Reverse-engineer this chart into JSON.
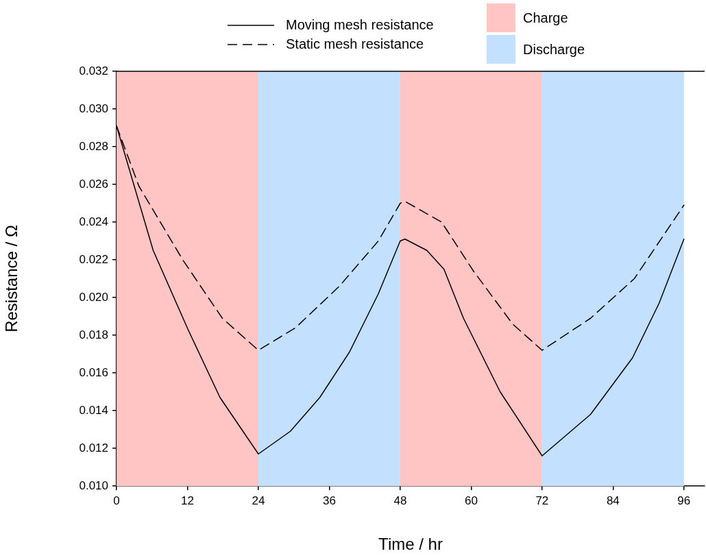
{
  "chart_data": {
    "type": "line",
    "xlabel": "Time / hr",
    "ylabel": "Resistance / Ω",
    "xlim": [
      0,
      99.5
    ],
    "xticks": [
      0,
      12,
      24,
      36,
      48,
      60,
      72,
      84,
      96
    ],
    "ylim": [
      0.01,
      0.032
    ],
    "yticks": [
      {
        "value": 0.01,
        "label": "0.010"
      },
      {
        "value": 0.012,
        "label": "0.012"
      },
      {
        "value": 0.014,
        "label": "0.014"
      },
      {
        "value": 0.016,
        "label": "0.016"
      },
      {
        "value": 0.018,
        "label": "0.018"
      },
      {
        "value": 0.02,
        "label": "0.020"
      },
      {
        "value": 0.022,
        "label": "0.022"
      },
      {
        "value": 0.024,
        "label": "0.024"
      },
      {
        "value": 0.026,
        "label": "0.026"
      },
      {
        "value": 0.028,
        "label": "0.028"
      },
      {
        "value": 0.03,
        "label": "0.030"
      },
      {
        "value": 0.032,
        "label": "0.032"
      }
    ],
    "grid": false,
    "legend": "top",
    "marker": "none",
    "series": [
      {
        "name": "Moving mesh resistance",
        "color": "#000000",
        "line_style": "solid",
        "x": [
          0,
          6.2,
          12.1,
          17.5,
          24,
          29.4,
          34.4,
          39.4,
          44.3,
          48,
          48.8,
          52.5,
          55.4,
          58.7,
          64.9,
          72,
          80.2,
          87.3,
          91.8,
          96
        ],
        "values": [
          0.0291,
          0.0225,
          0.0183,
          0.0147,
          0.0117,
          0.0129,
          0.0147,
          0.0171,
          0.0202,
          0.023,
          0.0231,
          0.0225,
          0.0215,
          0.0189,
          0.015,
          0.0116,
          0.0138,
          0.0168,
          0.0197,
          0.0231
        ]
      },
      {
        "name": "Static mesh resistance",
        "color": "#000000",
        "line_style": "dashed",
        "x": [
          0,
          3.8,
          11.2,
          17.9,
          24,
          30.3,
          37.7,
          44.3,
          48,
          48.8,
          55,
          60.4,
          67,
          72,
          80.2,
          87.6,
          96
        ],
        "values": [
          0.0291,
          0.0259,
          0.022,
          0.0189,
          0.0172,
          0.0184,
          0.0206,
          0.023,
          0.025,
          0.0251,
          0.024,
          0.0214,
          0.0186,
          0.0172,
          0.0189,
          0.021,
          0.0249
        ]
      }
    ],
    "bands": [
      {
        "axis": "x",
        "from": 0,
        "to": 24,
        "label": "Charge",
        "color": "#ffc4c4"
      },
      {
        "axis": "x",
        "from": 24,
        "to": 48,
        "label": "Discharge",
        "color": "#c4e0ff"
      },
      {
        "axis": "x",
        "from": 48,
        "to": 72,
        "color": "#ffc4c4"
      },
      {
        "axis": "x",
        "from": 72,
        "to": 96,
        "color": "#c4e0ff"
      }
    ]
  }
}
